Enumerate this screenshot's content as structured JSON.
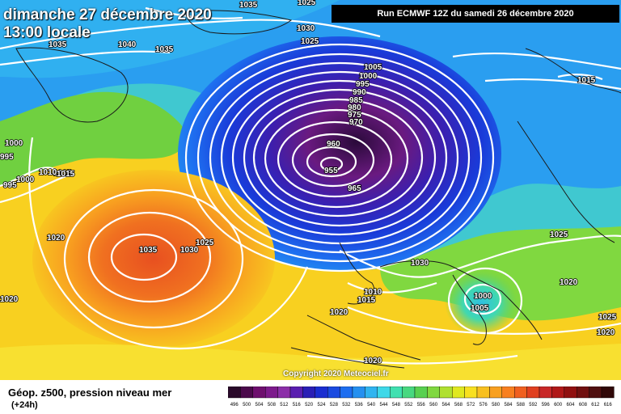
{
  "date_label": "dimanche 27 décembre 2020",
  "time_label": "13:00 locale",
  "run_label": "Run ECMWF 12Z du samedi 26 décembre 2020",
  "copyright": "Copyright 2020 Meteociel.fr",
  "footer": {
    "title": "Géop. z500, pression niveau mer",
    "subtitle": "(+24h)"
  },
  "legend_scale": [
    "496",
    "500",
    "504",
    "508",
    "512",
    "516",
    "520",
    "524",
    "528",
    "532",
    "536",
    "540",
    "544",
    "548",
    "552",
    "556",
    "560",
    "564",
    "568",
    "572",
    "576",
    "580",
    "584",
    "588",
    "592",
    "596",
    "600",
    "604",
    "608",
    "612",
    "616"
  ],
  "legend_colors": [
    "#2a0a2a",
    "#4b0a4b",
    "#6e0f6e",
    "#7d1a8c",
    "#8c2fa8",
    "#5a1fb0",
    "#2a1fb5",
    "#1a2ed0",
    "#1a4ae0",
    "#1e6ef0",
    "#2590f0",
    "#30b4f0",
    "#3ed8e8",
    "#40e0b0",
    "#48d880",
    "#58d050",
    "#80d840",
    "#b0e030",
    "#e0e820",
    "#f8e020",
    "#f8c020",
    "#f8a020",
    "#f88020",
    "#f06020",
    "#e04020",
    "#c82828",
    "#b01818",
    "#901010",
    "#701010",
    "#501010",
    "#300808"
  ],
  "isobars": [
    "1035",
    "1035",
    "1040",
    "1035",
    "1030",
    "1025",
    "1005",
    "1000",
    "995",
    "990",
    "985",
    "980",
    "975",
    "970",
    "960",
    "955",
    "965",
    "1025",
    "1015",
    "1015",
    "1000",
    "995",
    "1000",
    "1010",
    "1015",
    "995",
    "1020",
    "1035",
    "1030",
    "1025",
    "1020",
    "1010",
    "1015",
    "1030",
    "1025",
    "1020",
    "1000",
    "1005",
    "1025",
    "1020",
    "1020",
    "1020"
  ]
}
